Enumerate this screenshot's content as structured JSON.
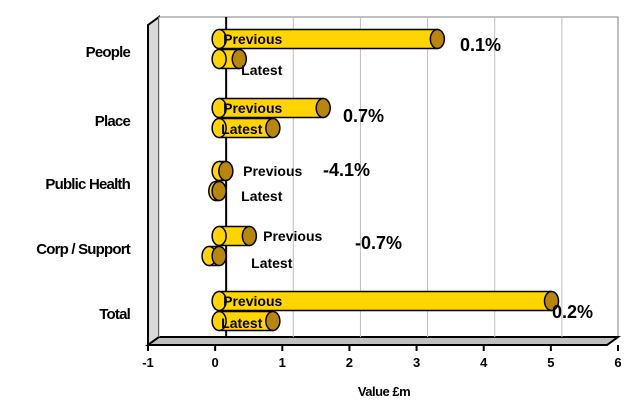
{
  "chart_data": {
    "type": "bar",
    "orientation": "horizontal",
    "style": "3d-cylinder",
    "xlabel": "Value £m",
    "xlim": [
      -1,
      6
    ],
    "xticks": [
      "-1",
      "0",
      "1",
      "2",
      "3",
      "4",
      "5",
      "6"
    ],
    "grid": true,
    "bar_color": "#FFD700",
    "categories": [
      "People",
      "Place",
      "Public Health",
      "Corp / Support",
      "Total"
    ],
    "series": [
      {
        "name": "Previous",
        "values": [
          3.25,
          1.55,
          0.1,
          0.45,
          4.95
        ]
      },
      {
        "name": "Latest",
        "values": [
          0.3,
          0.8,
          -0.05,
          -0.15,
          0.8
        ]
      }
    ],
    "annotations": [
      "0.1%",
      "0.7%",
      "-4.1%",
      "-0.7%",
      "0.2%"
    ]
  }
}
